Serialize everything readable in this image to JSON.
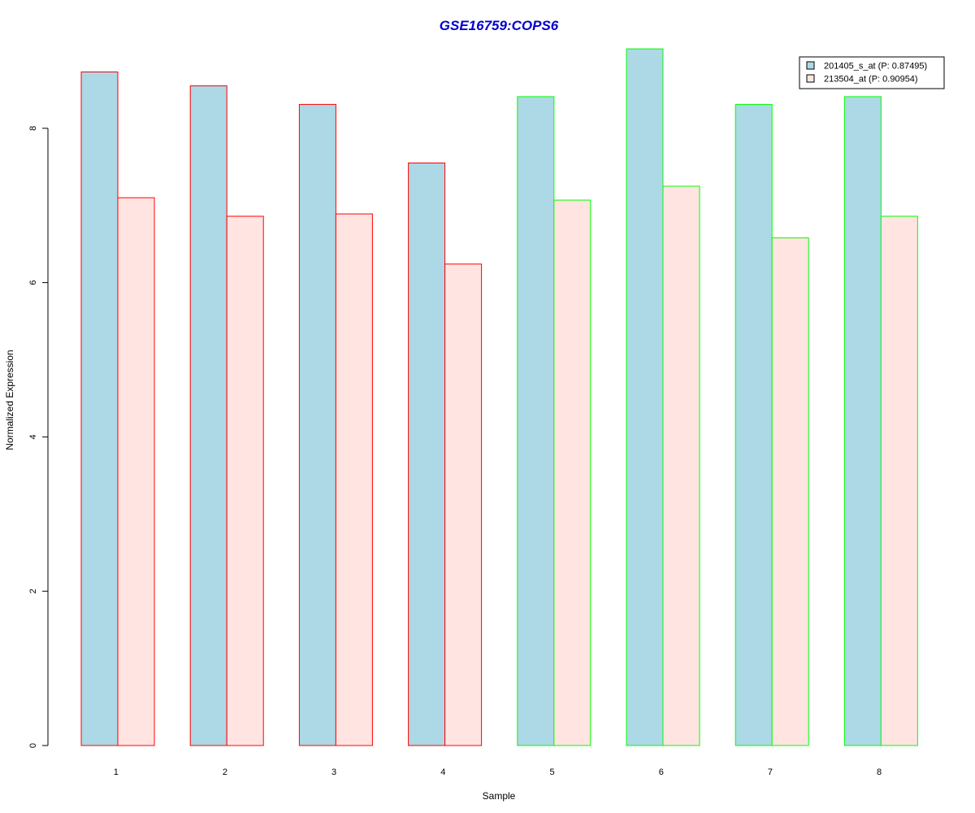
{
  "chart_data": {
    "type": "bar",
    "title": "GSE16759:COPS6",
    "xlabel": "Sample",
    "ylabel": "Normalized Expression",
    "categories": [
      "1",
      "2",
      "3",
      "4",
      "5",
      "6",
      "7",
      "8"
    ],
    "series": [
      {
        "name": "201405_s_at (P: 0.87495)",
        "color": "#add8e6",
        "values": [
          8.73,
          8.55,
          8.31,
          7.55,
          8.41,
          9.03,
          8.31,
          8.41
        ]
      },
      {
        "name": "213504_at (P: 0.90954)",
        "color": "#ffe4e1",
        "values": [
          7.1,
          6.86,
          6.89,
          6.24,
          7.07,
          7.25,
          6.58,
          6.86
        ]
      }
    ],
    "group_border_colors": [
      "#ff0000",
      "#ff0000",
      "#ff0000",
      "#ff0000",
      "#00ff00",
      "#00ff00",
      "#00ff00",
      "#00ff00"
    ],
    "y_ticks": [
      "0",
      "2",
      "4",
      "6",
      "8"
    ],
    "ylim": [
      0,
      9.03
    ],
    "title_color": "#0000cd",
    "legend_position": "top-right",
    "grid": false
  }
}
